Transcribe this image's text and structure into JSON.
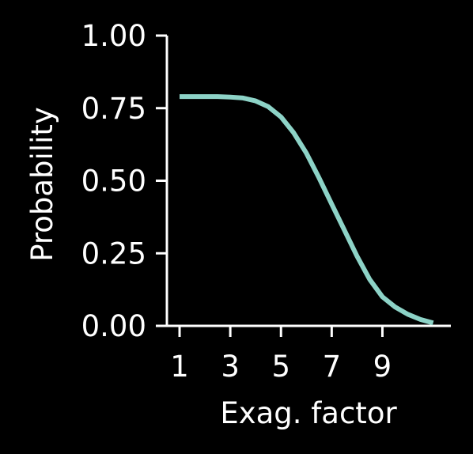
{
  "chart_data": {
    "type": "line",
    "title": "",
    "xlabel": "Exag. factor",
    "ylabel": "Probability",
    "xlim": [
      0.5,
      11.7
    ],
    "ylim": [
      0,
      1.0
    ],
    "xticks": [
      1,
      3,
      5,
      7,
      9
    ],
    "xtick_labels": [
      "1",
      "3",
      "5",
      "7",
      "9"
    ],
    "yticks": [
      0,
      0.25,
      0.5,
      0.75,
      1.0
    ],
    "ytick_labels": [
      "0.00",
      "0.25",
      "0.50",
      "0.75",
      "1.00"
    ],
    "grid": false,
    "colors": {
      "background": "#000000",
      "axes": "#ffffff",
      "line": "#8dd3c7"
    },
    "series": [
      {
        "x": [
          1.0,
          1.5,
          2.0,
          2.5,
          3.0,
          3.5,
          4.0,
          4.5,
          5.0,
          5.5,
          6.0,
          6.5,
          7.0,
          7.5,
          8.0,
          8.5,
          9.0,
          9.5,
          10.0,
          10.5,
          11.0
        ],
        "values": [
          0.79,
          0.79,
          0.79,
          0.79,
          0.788,
          0.785,
          0.775,
          0.755,
          0.72,
          0.665,
          0.595,
          0.51,
          0.42,
          0.33,
          0.24,
          0.16,
          0.1,
          0.065,
          0.04,
          0.022,
          0.01
        ]
      }
    ]
  }
}
